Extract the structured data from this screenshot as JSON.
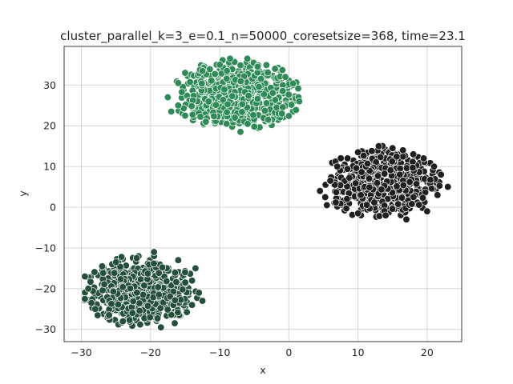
{
  "chart_data": {
    "type": "scatter",
    "title": "cluster_parallel_k=3_e=0.1_n=50000_coresetsize=368, time=23.1",
    "xlabel": "x",
    "ylabel": "y",
    "xlim": [
      -32.5,
      25
    ],
    "ylim": [
      -33,
      39.5
    ],
    "xticks": [
      -30,
      -20,
      -10,
      0,
      10,
      20
    ],
    "yticks": [
      -30,
      -20,
      -10,
      0,
      10,
      20,
      30
    ],
    "xtick_labels": [
      "−30",
      "−20",
      "−10",
      "0",
      "10",
      "20"
    ],
    "ytick_labels": [
      "−30",
      "−20",
      "−10",
      "0",
      "10",
      "20",
      "30"
    ],
    "grid": true,
    "marker_edge_color": "#ffffff",
    "clusters": [
      {
        "color": "#2e8b57",
        "center": [
          -7.5,
          27.5
        ],
        "extent": [
          9.5,
          9
        ],
        "points": [
          [
            -8.5,
            36.5
          ],
          [
            -6,
            36.5
          ],
          [
            -10,
            35
          ],
          [
            -4.5,
            34.5
          ],
          [
            -12.5,
            33.5
          ],
          [
            -2,
            34
          ],
          [
            -15,
            33
          ],
          [
            -0.5,
            32
          ],
          [
            -16,
            30.5
          ],
          [
            1.5,
            26
          ],
          [
            -17.5,
            27
          ],
          [
            -16,
            25
          ],
          [
            -12,
            21
          ],
          [
            -9,
            20.5
          ],
          [
            -5,
            19.8
          ],
          [
            -3,
            21.5
          ],
          [
            -1,
            23
          ],
          [
            -15,
            22.5
          ],
          [
            -17,
            23.5
          ],
          [
            -7,
            18.5
          ]
        ]
      },
      {
        "color": "#1f1f1f",
        "center": [
          13.5,
          6
        ],
        "extent": [
          9,
          9.2
        ],
        "points": [
          [
            13,
            15
          ],
          [
            15,
            14.5
          ],
          [
            10,
            13.5
          ],
          [
            18,
            13
          ],
          [
            8.5,
            12
          ],
          [
            21,
            10
          ],
          [
            4.5,
            4
          ],
          [
            5.5,
            0.5
          ],
          [
            6,
            6.5
          ],
          [
            21.5,
            3
          ],
          [
            22,
            8
          ],
          [
            17,
            -3
          ],
          [
            14,
            -2
          ],
          [
            10,
            -1.5
          ],
          [
            20,
            -1
          ],
          [
            12,
            13.8
          ],
          [
            16.5,
            14
          ],
          [
            19.5,
            12
          ],
          [
            7,
            10
          ],
          [
            23,
            5
          ]
        ]
      },
      {
        "color": "#24503a",
        "center": [
          -21.5,
          -20.5
        ],
        "extent": [
          8.5,
          9
        ],
        "points": [
          [
            -19.5,
            -11
          ],
          [
            -22,
            -12.5
          ],
          [
            -25,
            -13.5
          ],
          [
            -27,
            -14.5
          ],
          [
            -29.5,
            -17
          ],
          [
            -29,
            -20
          ],
          [
            -29.5,
            -22.5
          ],
          [
            -28,
            -25
          ],
          [
            -26,
            -26.5
          ],
          [
            -24,
            -28
          ],
          [
            -18.5,
            -29.5
          ],
          [
            -16.5,
            -28.5
          ],
          [
            -14,
            -24
          ],
          [
            -13,
            -21
          ],
          [
            -14,
            -18
          ],
          [
            -15,
            -16
          ],
          [
            -13.5,
            -15
          ],
          [
            -16,
            -13
          ],
          [
            -21.5,
            -28.8
          ],
          [
            -12.5,
            -23
          ]
        ]
      }
    ]
  }
}
